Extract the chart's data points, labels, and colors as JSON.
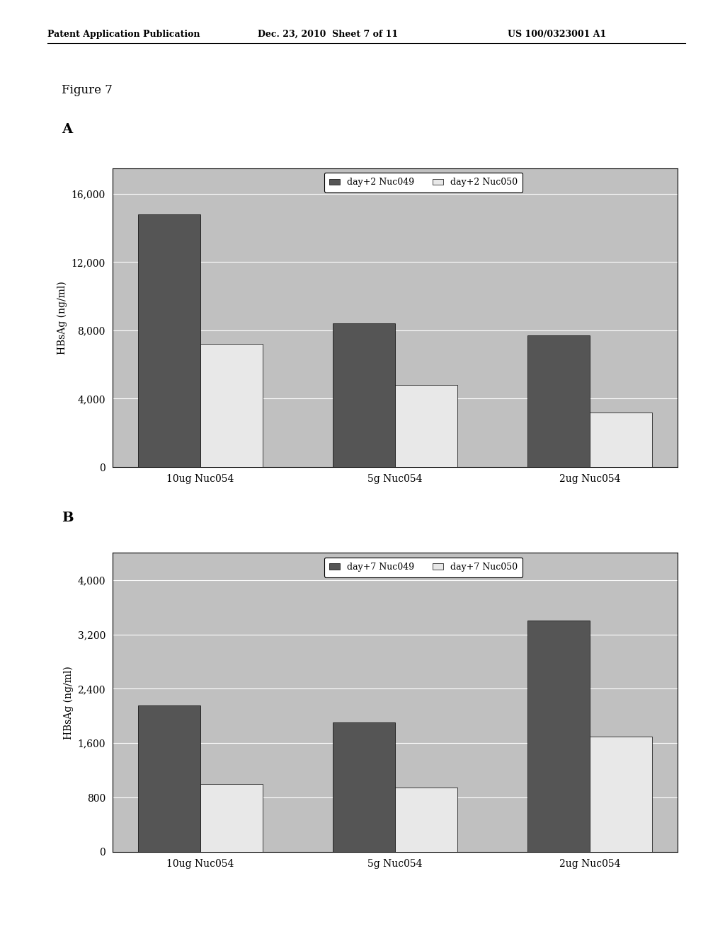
{
  "header_left": "Patent Application Publication",
  "header_mid": "Dec. 23, 2010  Sheet 7 of 11",
  "header_right": "US 100/0323001 A1",
  "figure_label": "Figure 7",
  "panel_a_label": "A",
  "panel_b_label": "B",
  "chart_a": {
    "legend_label1": "day+2 Nuc049",
    "legend_label2": "day+2 Nuc050",
    "categories": [
      "10ug Nuc054",
      "5g Nuc054",
      "2ug Nuc054"
    ],
    "series1": [
      14800,
      8400,
      7700
    ],
    "series2": [
      7200,
      4800,
      3200
    ],
    "ylabel": "HBsAg (ng/ml)",
    "yticks": [
      0,
      4000,
      8000,
      12000,
      16000
    ],
    "ylim": [
      0,
      17500
    ],
    "color1": "#555555",
    "color2": "#e8e8e8",
    "bg_color": "#c0c0c0",
    "grid_color": "#ffffff"
  },
  "chart_b": {
    "legend_label1": "day+7 Nuc049",
    "legend_label2": "day+7 Nuc050",
    "categories": [
      "10ug Nuc054",
      "5g Nuc054",
      "2ug Nuc054"
    ],
    "series1": [
      2150,
      1900,
      3400
    ],
    "series2": [
      1000,
      950,
      1700
    ],
    "ylabel": "HBsAg (ng/ml)",
    "yticks": [
      0,
      800,
      1600,
      2400,
      3200,
      4000
    ],
    "ylim": [
      0,
      4400
    ],
    "color1": "#555555",
    "color2": "#e8e8e8",
    "bg_color": "#c0c0c0",
    "grid_color": "#ffffff"
  },
  "bar_width": 0.32,
  "page_bg": "#ffffff",
  "border_color": "#000000",
  "font_size_header": 9,
  "font_size_label": 10,
  "font_size_tick": 9,
  "font_size_legend": 9,
  "font_size_panel": 14,
  "font_size_figure": 12
}
